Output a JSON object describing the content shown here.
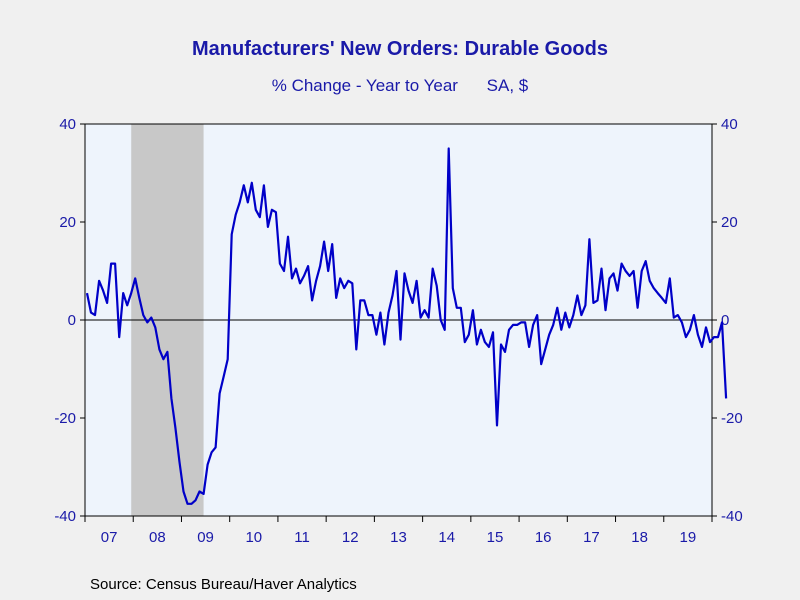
{
  "chart_data": {
    "type": "line",
    "title": "Manufacturers' New Orders: Durable Goods",
    "subtitle_parts": [
      "% Change - Year to Year",
      "SA, $"
    ],
    "source": "Source:  Census Bureau/Haver Analytics",
    "ylim": [
      -40,
      40
    ],
    "y_ticks": [
      40,
      20,
      0,
      -20,
      -40
    ],
    "y_tick_labels": [
      "40",
      "20",
      "0",
      "-20",
      "-40"
    ],
    "x_tick_labels": [
      "07",
      "08",
      "09",
      "10",
      "11",
      "12",
      "13",
      "14",
      "15",
      "16",
      "17",
      "18",
      "19"
    ],
    "recession_shading": {
      "start": "2007-12",
      "end": "2009-06"
    },
    "colors": {
      "line": "#0000c8",
      "text": "#1a1aa8",
      "plot_background": "#eef4fc",
      "recession": "#c8c8c8",
      "zero_line": "#000000"
    },
    "series": [
      {
        "x_start": "2007-01",
        "frequency": "monthly",
        "values": [
          5.5,
          1.5,
          1.0,
          8.0,
          6.0,
          3.5,
          11.5,
          11.5,
          -3.5,
          5.5,
          3.0,
          5.5,
          8.5,
          4.5,
          1.0,
          -0.5,
          0.5,
          -1.5,
          -6.0,
          -8.0,
          -6.5,
          -16.0,
          -22.0,
          -29.0,
          -35.0,
          -37.5,
          -37.5,
          -36.8,
          -35.0,
          -35.5,
          -29.5,
          -27.0,
          -26.0,
          -15.0,
          -11.5,
          -8.0,
          17.5,
          21.5,
          24.0,
          27.5,
          24.0,
          28.0,
          22.5,
          21.0,
          27.5,
          19.0,
          22.5,
          22.0,
          11.5,
          10.0,
          17.0,
          8.5,
          10.5,
          7.5,
          9.0,
          11.0,
          4.0,
          8.0,
          11.0,
          16.0,
          10.0,
          15.5,
          4.5,
          8.5,
          6.5,
          8.0,
          7.5,
          -6.0,
          4.0,
          4.0,
          1.0,
          1.0,
          -3.0,
          1.5,
          -5.0,
          1.5,
          5.0,
          10.0,
          -4.0,
          9.5,
          6.0,
          3.5,
          8.0,
          0.5,
          2.0,
          0.5,
          10.5,
          7.0,
          0.0,
          -2.0,
          35.0,
          6.5,
          2.5,
          2.5,
          -4.5,
          -3.0,
          2.0,
          -5.0,
          -2.0,
          -4.5,
          -5.5,
          -2.5,
          -21.5,
          -5.0,
          -6.5,
          -2.0,
          -1.0,
          -1.0,
          -0.5,
          -0.5,
          -5.5,
          -1.0,
          1.0,
          -9.0,
          -6.0,
          -3.0,
          -1.0,
          2.5,
          -2.0,
          1.5,
          -1.5,
          1.0,
          5.0,
          1.0,
          3.0,
          16.5,
          3.5,
          4.0,
          10.5,
          2.0,
          8.5,
          9.5,
          6.0,
          11.5,
          10.0,
          9.0,
          10.0,
          2.5,
          10.0,
          12.0,
          8.0,
          6.5,
          5.5,
          4.5,
          3.5,
          8.5,
          0.5,
          1.0,
          -0.5,
          -3.5,
          -2.0,
          1.0,
          -3.0,
          -5.5,
          -1.5,
          -4.5,
          -3.5,
          -3.5,
          -0.5,
          -16.0
        ]
      }
    ]
  }
}
